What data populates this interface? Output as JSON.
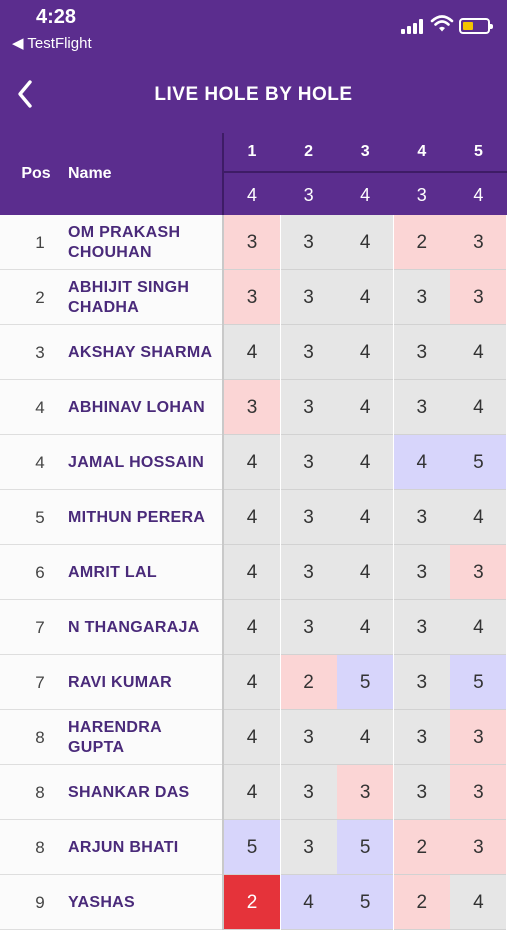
{
  "status": {
    "time": "4:28",
    "back_app": "◀ TestFlight"
  },
  "nav": {
    "title": "LIVE HOLE BY HOLE"
  },
  "header": {
    "pos": "Pos",
    "name": "Name",
    "holes": [
      "1",
      "2",
      "3",
      "4",
      "5"
    ],
    "pars": [
      "4",
      "3",
      "4",
      "3",
      "4"
    ]
  },
  "colors": {
    "purple": "#5b2d8e",
    "red_cell": "#fbd5d5",
    "blue_cell": "#d7d5fb",
    "double_red": "#e5333a"
  },
  "rows": [
    {
      "pos": "1",
      "name": "OM PRAKASH CHOUHAN",
      "scores": [
        "3",
        "3",
        "4",
        "2",
        "3"
      ],
      "marks": [
        "red",
        "",
        "",
        "red",
        "red"
      ]
    },
    {
      "pos": "2",
      "name": "ABHIJIT SINGH CHADHA",
      "scores": [
        "3",
        "3",
        "4",
        "3",
        "3"
      ],
      "marks": [
        "red",
        "",
        "",
        "",
        "red"
      ]
    },
    {
      "pos": "3",
      "name": "AKSHAY SHARMA",
      "scores": [
        "4",
        "3",
        "4",
        "3",
        "4"
      ],
      "marks": [
        "",
        "",
        "",
        "",
        ""
      ]
    },
    {
      "pos": "4",
      "name": "ABHINAV LOHAN",
      "scores": [
        "3",
        "3",
        "4",
        "3",
        "4"
      ],
      "marks": [
        "red",
        "",
        "",
        "",
        ""
      ]
    },
    {
      "pos": "4",
      "name": "JAMAL HOSSAIN",
      "scores": [
        "4",
        "3",
        "4",
        "4",
        "5"
      ],
      "marks": [
        "",
        "",
        "",
        "blue",
        "blue"
      ]
    },
    {
      "pos": "5",
      "name": "MITHUN PERERA",
      "scores": [
        "4",
        "3",
        "4",
        "3",
        "4"
      ],
      "marks": [
        "",
        "",
        "",
        "",
        ""
      ]
    },
    {
      "pos": "6",
      "name": "AMRIT LAL",
      "scores": [
        "4",
        "3",
        "4",
        "3",
        "3"
      ],
      "marks": [
        "",
        "",
        "",
        "",
        "red"
      ]
    },
    {
      "pos": "7",
      "name": "N THANGARAJA",
      "scores": [
        "4",
        "3",
        "4",
        "3",
        "4"
      ],
      "marks": [
        "",
        "",
        "",
        "",
        ""
      ]
    },
    {
      "pos": "7",
      "name": "RAVI KUMAR",
      "scores": [
        "4",
        "2",
        "5",
        "3",
        "5"
      ],
      "marks": [
        "",
        "red",
        "blue",
        "",
        "blue"
      ]
    },
    {
      "pos": "8",
      "name": "HARENDRA GUPTA",
      "scores": [
        "4",
        "3",
        "4",
        "3",
        "3"
      ],
      "marks": [
        "",
        "",
        "",
        "",
        "red"
      ]
    },
    {
      "pos": "8",
      "name": "SHANKAR DAS",
      "scores": [
        "4",
        "3",
        "3",
        "3",
        "3"
      ],
      "marks": [
        "",
        "",
        "red",
        "",
        "red"
      ]
    },
    {
      "pos": "8",
      "name": "ARJUN BHATI",
      "scores": [
        "5",
        "3",
        "5",
        "2",
        "3"
      ],
      "marks": [
        "blue",
        "",
        "blue",
        "red",
        "red"
      ]
    },
    {
      "pos": "9",
      "name": "YASHAS",
      "scores": [
        "2",
        "4",
        "5",
        "2",
        "4"
      ],
      "marks": [
        "dred",
        "blue",
        "blue",
        "red",
        ""
      ]
    }
  ]
}
